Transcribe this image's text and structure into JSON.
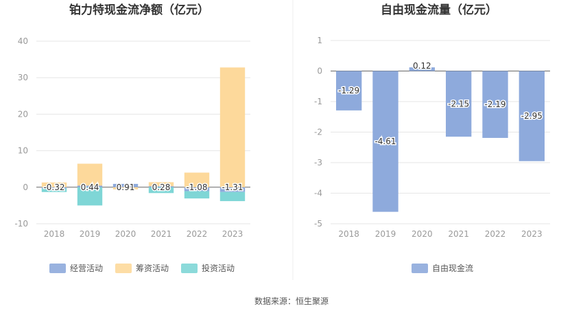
{
  "source_text": "数据来源：恒生聚源",
  "chart_data": [
    {
      "type": "bar",
      "stacked": true,
      "title": "铂力特现金流净额（亿元）",
      "categories": [
        "2018",
        "2019",
        "2020",
        "2021",
        "2022",
        "2023"
      ],
      "ylim": [
        -10,
        40
      ],
      "yticks": [
        -10,
        0,
        10,
        20,
        30,
        40
      ],
      "grid": true,
      "legend_position": "bottom",
      "series": [
        {
          "name": "经营活动",
          "color": "#8eaadc",
          "values": [
            -0.32,
            0.44,
            0.91,
            0.28,
            -1.08,
            -1.31
          ]
        },
        {
          "name": "筹资活动",
          "color": "#fdd99b",
          "values": [
            1.3,
            6.0,
            -0.6,
            1.1,
            4.0,
            32.8
          ]
        },
        {
          "name": "投资活动",
          "color": "#7fd6d6",
          "values": [
            -1.0,
            -5.0,
            0.0,
            -1.6,
            -2.0,
            -2.5
          ]
        }
      ],
      "data_labels": [
        "-0.32",
        "0.44",
        "0.91",
        "0.28",
        "-1.08",
        "-1.31"
      ]
    },
    {
      "type": "bar",
      "title": "自由现金流量（亿元）",
      "categories": [
        "2018",
        "2019",
        "2020",
        "2021",
        "2022",
        "2023"
      ],
      "ylim": [
        -5,
        1
      ],
      "yticks": [
        -5,
        -4,
        -3,
        -2,
        -1,
        0,
        1
      ],
      "grid": true,
      "legend_position": "bottom",
      "series": [
        {
          "name": "自由现金流",
          "color": "#8eaadc",
          "values": [
            -1.29,
            -4.61,
            0.12,
            -2.15,
            -2.19,
            -2.95
          ]
        }
      ],
      "data_labels": [
        "-1.29",
        "-4.61",
        "0.12",
        "-2.15",
        "-2.19",
        "-2.95"
      ]
    }
  ]
}
